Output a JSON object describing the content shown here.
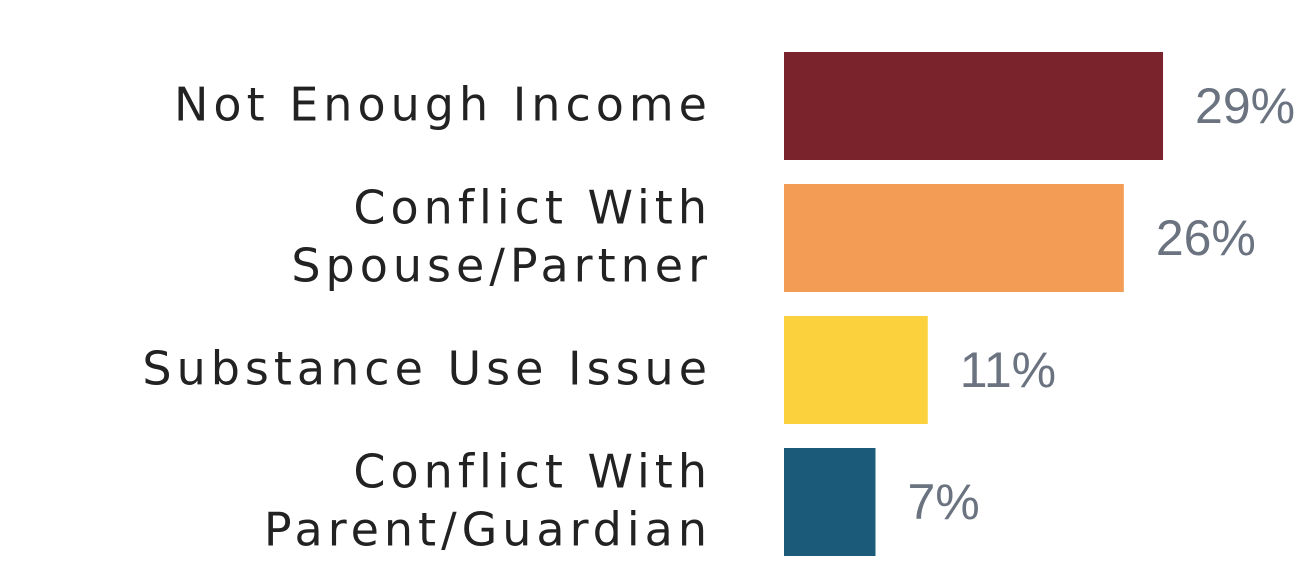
{
  "chart_data": {
    "type": "bar",
    "orientation": "horizontal",
    "categories": [
      [
        "Not Enough Income"
      ],
      [
        "Conflict With",
        "Spouse/Partner"
      ],
      [
        "Substance Use Issue"
      ],
      [
        "Conflict With",
        "Parent/Guardian"
      ]
    ],
    "values": [
      29,
      26,
      11,
      7
    ],
    "value_labels": [
      "29%",
      "26%",
      "11%",
      "7%"
    ],
    "colors": [
      "#7b232c",
      "#f39c55",
      "#fbd13d",
      "#1c5a7a"
    ]
  }
}
